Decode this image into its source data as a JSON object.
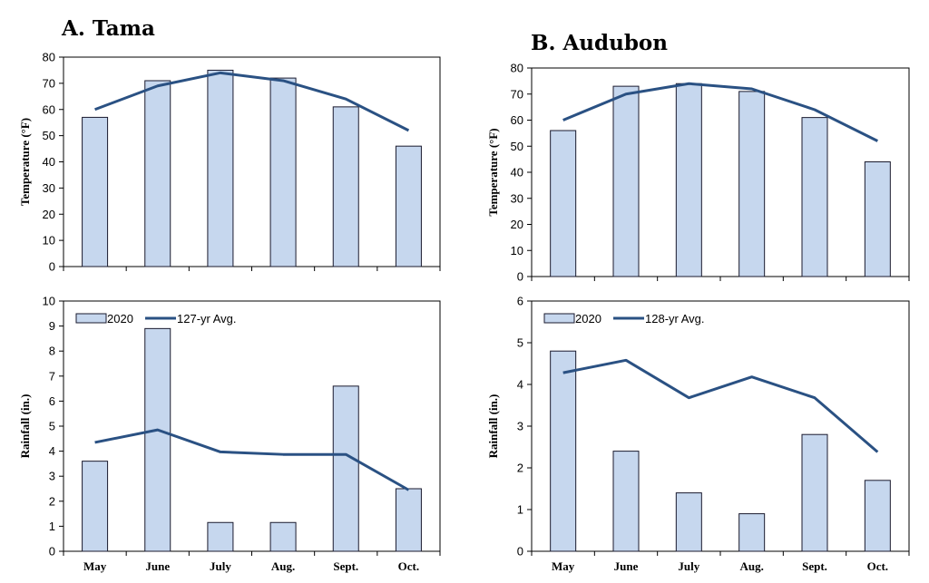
{
  "panels": {
    "a_title": "A. Tama",
    "b_title": "B. Audubon"
  },
  "colors": {
    "bar_fill": "#c6d7ee",
    "bar_stroke": "#1a1a2e",
    "line": "#2a5183"
  },
  "chart_data": [
    {
      "id": "tama-temp",
      "type": "bar",
      "categories": [
        "May",
        "June",
        "July",
        "Aug.",
        "Sept.",
        "Oct."
      ],
      "series": [
        {
          "kind": "bar",
          "values": [
            57,
            71,
            75,
            72,
            61,
            46
          ]
        },
        {
          "kind": "line",
          "values": [
            60,
            69,
            74,
            71,
            64,
            52
          ]
        }
      ],
      "ylabel": "Temperature (°F)",
      "ylim": [
        0,
        80
      ],
      "yticks": [
        0,
        10,
        20,
        30,
        40,
        50,
        60,
        70,
        80
      ],
      "show_categories": false
    },
    {
      "id": "tama-rain",
      "type": "bar",
      "categories": [
        "May",
        "June",
        "July",
        "Aug.",
        "Sept.",
        "Oct."
      ],
      "series": [
        {
          "kind": "bar",
          "name": "2020",
          "values": [
            3.6,
            8.9,
            1.15,
            1.15,
            6.6,
            2.5
          ]
        },
        {
          "kind": "line",
          "name": "127-yr Avg.",
          "values": [
            4.35,
            4.85,
            3.97,
            3.87,
            3.87,
            2.45
          ]
        }
      ],
      "ylabel": "Rainfall (in.)",
      "ylim": [
        0,
        10
      ],
      "yticks": [
        0,
        1,
        2,
        3,
        4,
        5,
        6,
        7,
        8,
        9,
        10
      ],
      "show_categories": true,
      "legend": "top-left"
    },
    {
      "id": "audubon-temp",
      "type": "bar",
      "categories": [
        "May",
        "June",
        "July",
        "Aug.",
        "Sept.",
        "Oct."
      ],
      "series": [
        {
          "kind": "bar",
          "values": [
            56,
            73,
            74,
            71,
            61,
            44
          ]
        },
        {
          "kind": "line",
          "values": [
            60,
            70,
            74,
            72,
            64,
            52
          ]
        }
      ],
      "ylabel": "Temperature (°F)",
      "ylim": [
        0,
        80
      ],
      "yticks": [
        0,
        10,
        20,
        30,
        40,
        50,
        60,
        70,
        80
      ],
      "show_categories": false
    },
    {
      "id": "audubon-rain",
      "type": "bar",
      "categories": [
        "May",
        "June",
        "July",
        "Aug.",
        "Sept.",
        "Oct."
      ],
      "series": [
        {
          "kind": "bar",
          "name": "2020",
          "values": [
            4.8,
            2.4,
            1.4,
            0.9,
            2.8,
            1.7
          ]
        },
        {
          "kind": "line",
          "name": "128-yr Avg.",
          "values": [
            4.28,
            4.58,
            3.68,
            4.18,
            3.68,
            2.38
          ]
        }
      ],
      "ylabel": "Rainfall (in.)",
      "ylim": [
        0,
        6
      ],
      "yticks": [
        0,
        1,
        2,
        3,
        4,
        5,
        6
      ],
      "show_categories": true,
      "legend": "top-left"
    }
  ]
}
